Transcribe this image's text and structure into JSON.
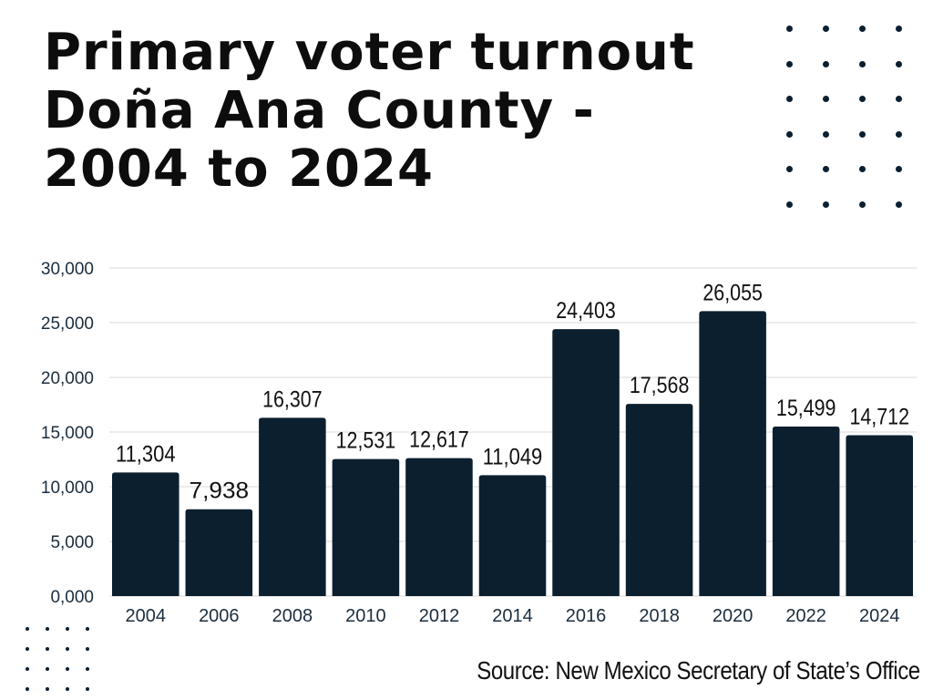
{
  "title": {
    "line1": "Primary voter turnout",
    "line2": "Doña Ana County -",
    "line3": "2004 to 2024"
  },
  "source": "Source: New Mexico Secretary of State’s Office",
  "colors": {
    "bar": "#0b1f2f",
    "grid": "#d8d8d8",
    "axis_text": "#1b2d3d",
    "label_text": "#111111"
  },
  "chart_data": {
    "type": "bar",
    "title": "Primary voter turnout Doña Ana County - 2004 to 2024",
    "xlabel": "",
    "ylabel": "",
    "categories": [
      "2004",
      "2006",
      "2008",
      "2010",
      "2012",
      "2014",
      "2016",
      "2018",
      "2020",
      "2022",
      "2024"
    ],
    "values": [
      11304,
      7938,
      16307,
      12531,
      12617,
      11049,
      24403,
      17568,
      26055,
      15499,
      14712
    ],
    "value_labels": [
      "11,304",
      "7,938",
      "16,307",
      "12,531",
      "12,617",
      "11,049",
      "24,403",
      "17,568",
      "26,055",
      "15,499",
      "14,712"
    ],
    "ylim": [
      0,
      30000
    ],
    "yticks": [
      0,
      5000,
      10000,
      15000,
      20000,
      25000,
      30000
    ],
    "ytick_labels": [
      "0,000",
      "5,000",
      "10,000",
      "15,000",
      "20,000",
      "25,000",
      "30,000"
    ],
    "grid": true,
    "legend": "none"
  }
}
